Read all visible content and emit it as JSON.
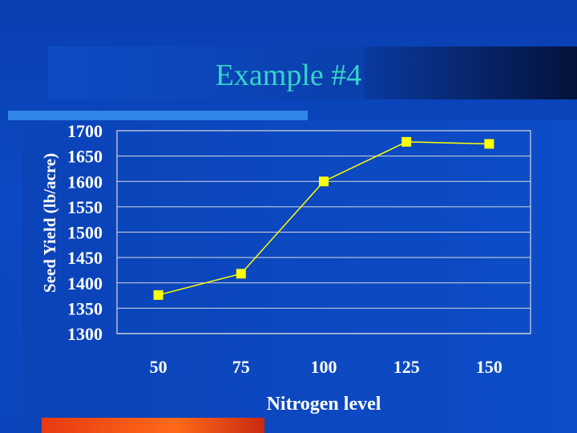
{
  "slide": {
    "title": "Example #4"
  },
  "colors": {
    "background": "#0a45bd",
    "title": "#35d4c8",
    "series": "#ffff00",
    "accent_orange": "#ff6a1a"
  },
  "chart_data": {
    "type": "line",
    "title": "",
    "xlabel": "Nitrogen level",
    "ylabel": "Seed Yield (lb/acre)",
    "categories": [
      "50",
      "75",
      "100",
      "125",
      "150"
    ],
    "series": [
      {
        "values": [
          1376,
          1418,
          1600,
          1678,
          1674
        ]
      }
    ],
    "ylim": [
      1300,
      1700
    ],
    "yticks": [
      "1700",
      "1650",
      "1600",
      "1550",
      "1500",
      "1450",
      "1400",
      "1350",
      "1300"
    ],
    "grid": true,
    "legend": "none",
    "marker": "square"
  }
}
